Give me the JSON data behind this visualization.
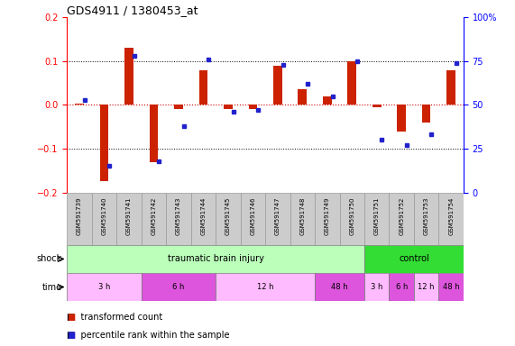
{
  "title": "GDS4911 / 1380453_at",
  "samples": [
    "GSM591739",
    "GSM591740",
    "GSM591741",
    "GSM591742",
    "GSM591743",
    "GSM591744",
    "GSM591745",
    "GSM591746",
    "GSM591747",
    "GSM591748",
    "GSM591749",
    "GSM591750",
    "GSM591751",
    "GSM591752",
    "GSM591753",
    "GSM591754"
  ],
  "red_values": [
    0.002,
    -0.175,
    0.13,
    -0.13,
    -0.01,
    0.08,
    -0.01,
    -0.01,
    0.09,
    0.035,
    0.02,
    0.1,
    -0.005,
    -0.06,
    -0.04,
    0.08
  ],
  "blue_percentiles": [
    53,
    15,
    78,
    18,
    38,
    76,
    46,
    47,
    73,
    62,
    55,
    75,
    30,
    27,
    33,
    74
  ],
  "ylim": [
    -0.2,
    0.2
  ],
  "yticks_left": [
    -0.2,
    -0.1,
    0.0,
    0.1,
    0.2
  ],
  "yticks_right": [
    0,
    25,
    50,
    75,
    100
  ],
  "shock_groups": [
    {
      "label": "traumatic brain injury",
      "start": 0,
      "end": 12,
      "color": "#bbffbb"
    },
    {
      "label": "control",
      "start": 12,
      "end": 16,
      "color": "#33dd33"
    }
  ],
  "time_groups": [
    {
      "label": "3 h",
      "start": 0,
      "end": 3,
      "color": "#ffbbff"
    },
    {
      "label": "6 h",
      "start": 3,
      "end": 6,
      "color": "#dd55dd"
    },
    {
      "label": "12 h",
      "start": 6,
      "end": 10,
      "color": "#ffbbff"
    },
    {
      "label": "48 h",
      "start": 10,
      "end": 12,
      "color": "#dd55dd"
    },
    {
      "label": "3 h",
      "start": 12,
      "end": 13,
      "color": "#ffbbff"
    },
    {
      "label": "6 h",
      "start": 13,
      "end": 14,
      "color": "#dd55dd"
    },
    {
      "label": "12 h",
      "start": 14,
      "end": 15,
      "color": "#ffbbff"
    },
    {
      "label": "48 h",
      "start": 15,
      "end": 16,
      "color": "#dd55dd"
    }
  ],
  "legend_red": "transformed count",
  "legend_blue": "percentile rank within the sample",
  "red_color": "#cc2200",
  "blue_color": "#2222cc",
  "zero_line_color": "#cc0000",
  "bg_color": "#ffffff",
  "label_row_color": "#cccccc"
}
